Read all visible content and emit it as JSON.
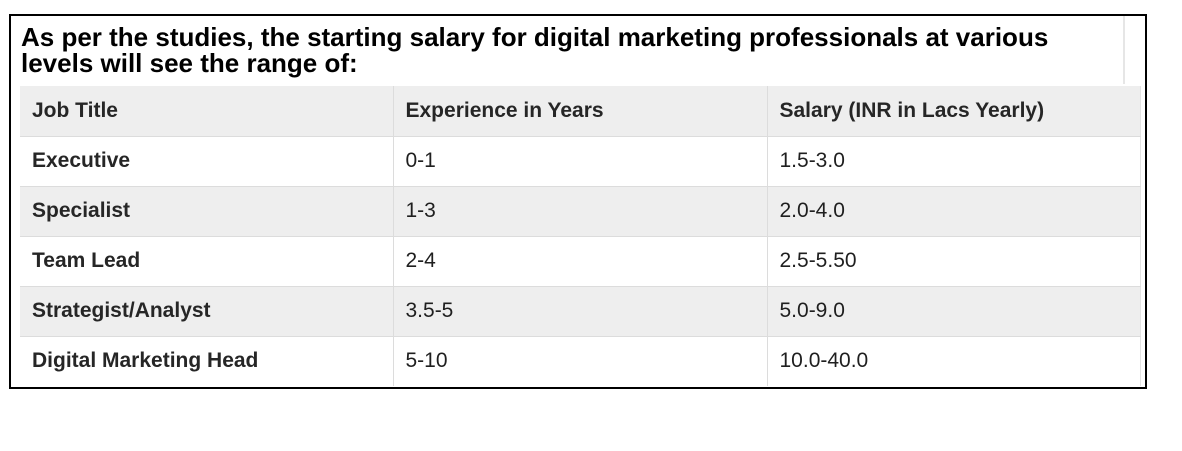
{
  "heading": "As per the studies, the starting salary for digital marketing professionals at various levels will see the range of:",
  "table": {
    "headers": [
      "Job Title",
      "Experience in Years",
      "Salary (INR in Lacs Yearly)"
    ],
    "rows": [
      [
        "Executive",
        "0-1",
        "1.5-3.0"
      ],
      [
        "Specialist",
        "1-3",
        "2.0-4.0"
      ],
      [
        "Team Lead",
        "2-4",
        "2.5-5.50"
      ],
      [
        "Strategist/Analyst",
        "3.5-5",
        "5.0-9.0"
      ],
      [
        "Digital Marketing Head",
        "5-10",
        "10.0-40.0"
      ]
    ]
  }
}
